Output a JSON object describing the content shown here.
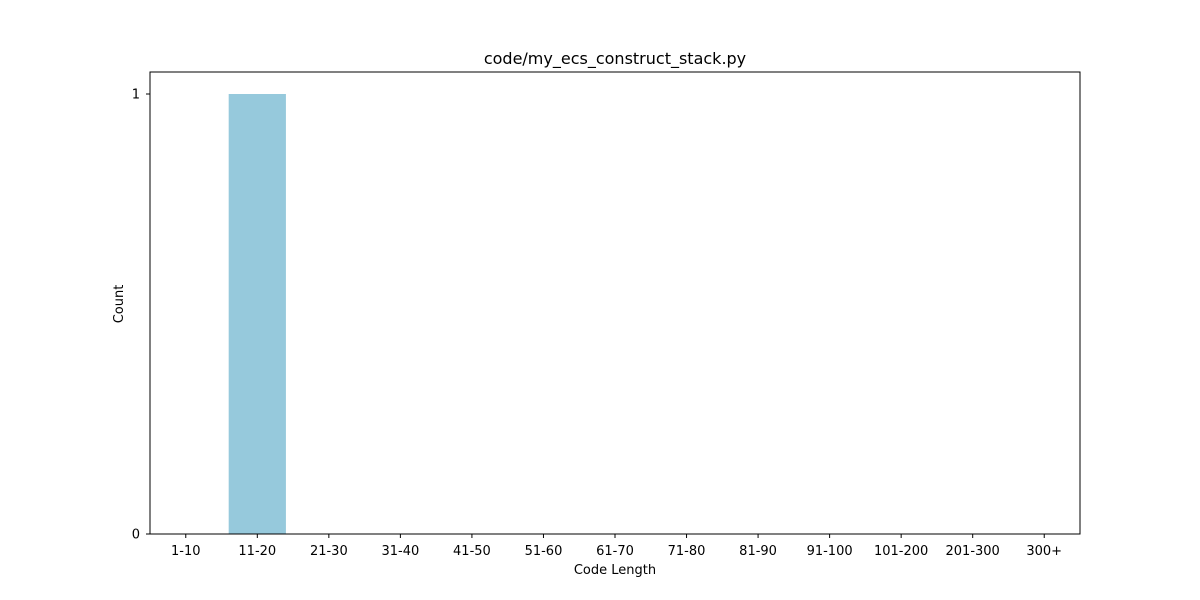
{
  "chart_data": {
    "type": "bar",
    "title": "code/my_ecs_construct_stack.py",
    "xlabel": "Code Length",
    "ylabel": "Count",
    "categories": [
      "1-10",
      "11-20",
      "21-30",
      "31-40",
      "41-50",
      "51-60",
      "61-70",
      "71-80",
      "81-90",
      "91-100",
      "101-200",
      "201-300",
      "300+"
    ],
    "values": [
      0,
      1,
      0,
      0,
      0,
      0,
      0,
      0,
      0,
      0,
      0,
      0,
      0
    ],
    "ylim": [
      0,
      1.05
    ],
    "yticks": [
      0,
      1
    ],
    "ytick_labels": [
      "0",
      "1"
    ],
    "grid": false,
    "bar_color": "#96c9dc"
  }
}
